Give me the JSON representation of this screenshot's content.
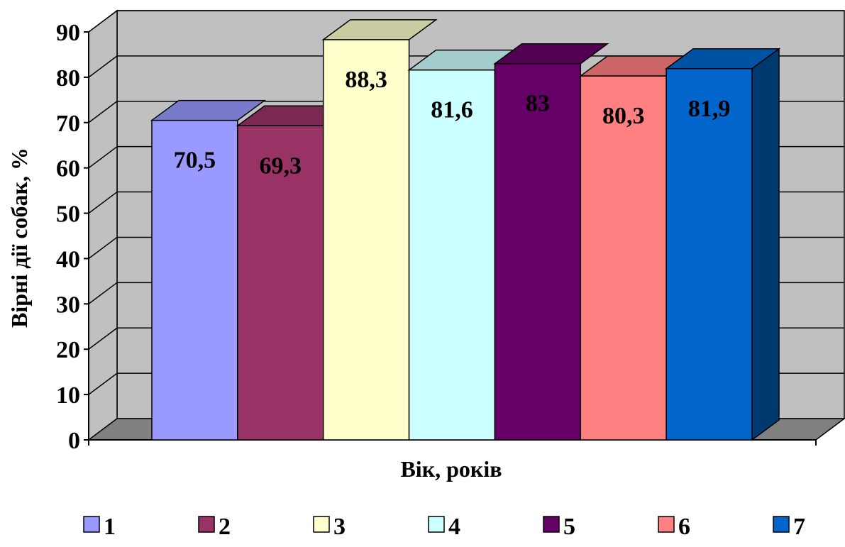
{
  "chart_data": {
    "type": "bar",
    "style": "3d-clustered",
    "xlabel": "Вік, років",
    "ylabel": "Вірні дії собак, %",
    "ylim": [
      0,
      90
    ],
    "y_ticks": [
      "0",
      "10",
      "20",
      "30",
      "40",
      "50",
      "60",
      "70",
      "80",
      "90"
    ],
    "grid": true,
    "legend_position": "bottom",
    "series": [
      {
        "name": "1",
        "value": 70.5,
        "label": "70,5",
        "color": "#9999FF"
      },
      {
        "name": "2",
        "value": 69.3,
        "label": "69,3",
        "color": "#993366"
      },
      {
        "name": "3",
        "value": 88.3,
        "label": "88,3",
        "color": "#FFFFCC"
      },
      {
        "name": "4",
        "value": 81.6,
        "label": "81,6",
        "color": "#CCFFFF"
      },
      {
        "name": "5",
        "value": 83,
        "label": "83",
        "color": "#660066"
      },
      {
        "name": "6",
        "value": 80.3,
        "label": "80,3",
        "color": "#FF8080"
      },
      {
        "name": "7",
        "value": 81.9,
        "label": "81,9",
        "color": "#0066CC"
      }
    ],
    "wall_color": "#C0C0C0",
    "floor_color": "#808080"
  }
}
